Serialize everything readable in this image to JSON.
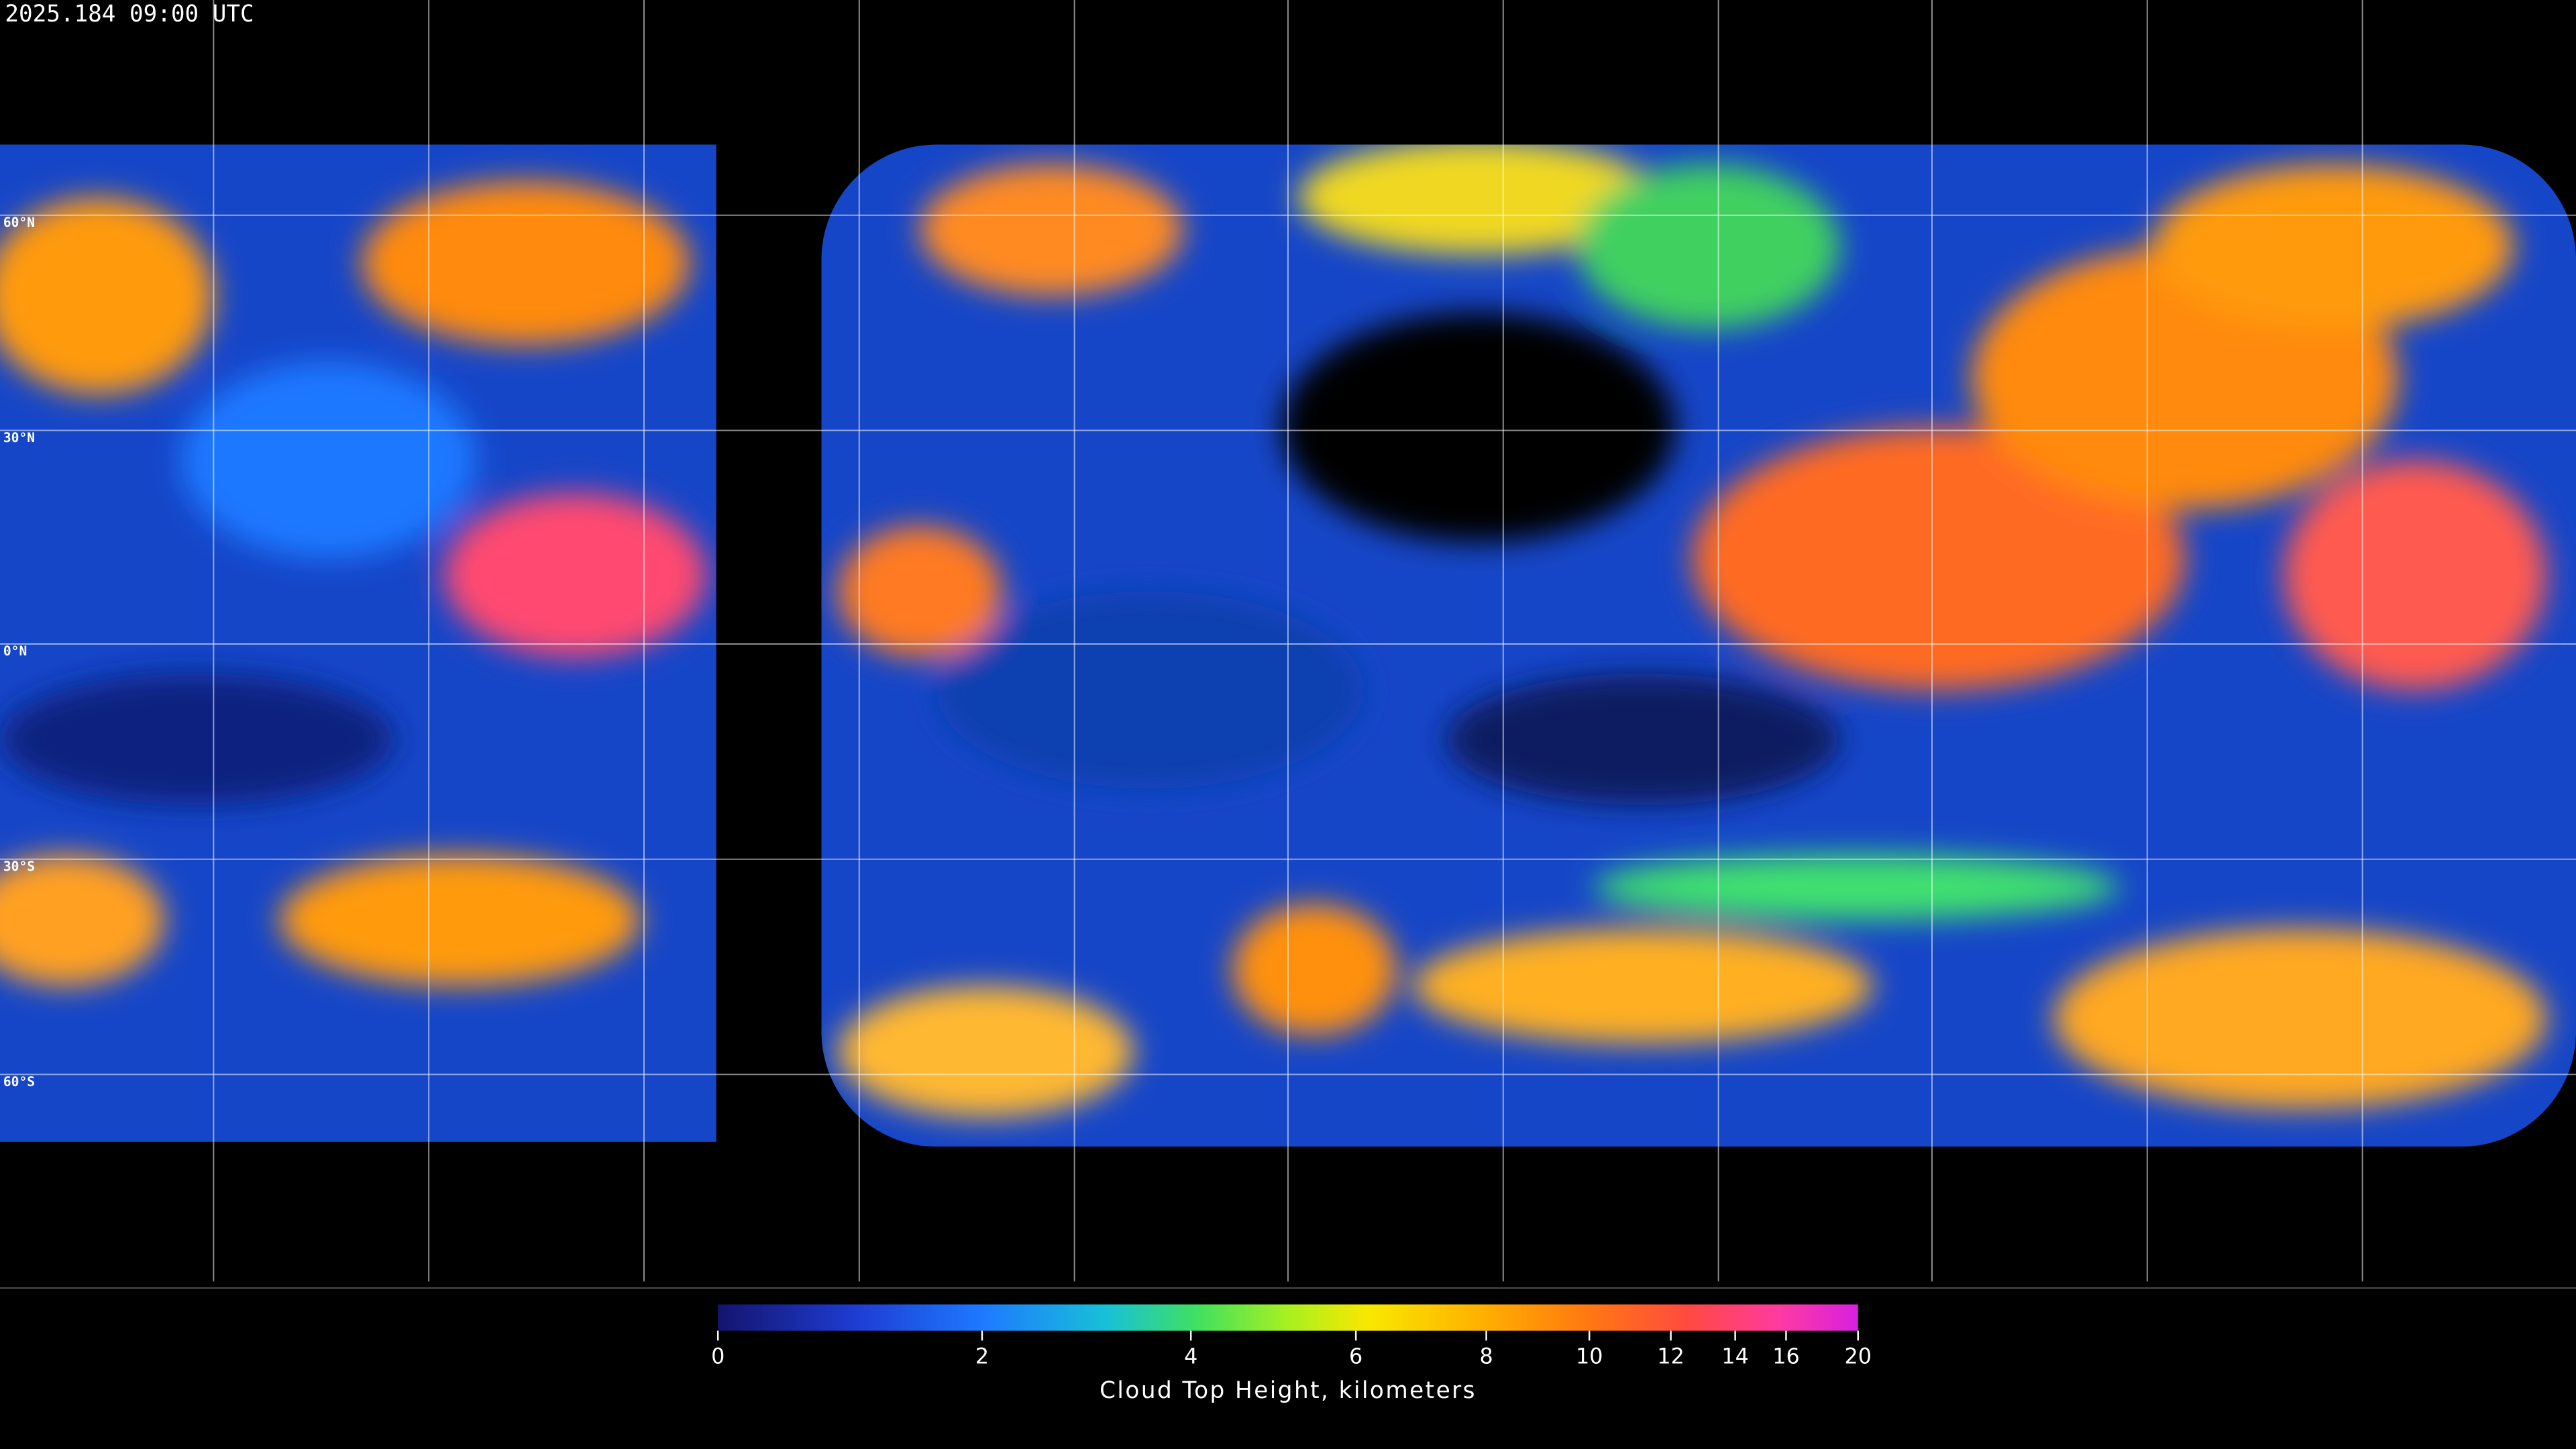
{
  "header": {
    "timestamp": "2025.184 09:00 UTC"
  },
  "map": {
    "latitude_labels": [
      "60°N",
      "30°N",
      "0°N",
      "30°S",
      "60°S"
    ]
  },
  "colorbar": {
    "title": "Cloud Top Height, kilometers",
    "ticks": [
      0,
      2,
      4,
      6,
      8,
      10,
      12,
      14,
      16,
      20
    ]
  }
}
